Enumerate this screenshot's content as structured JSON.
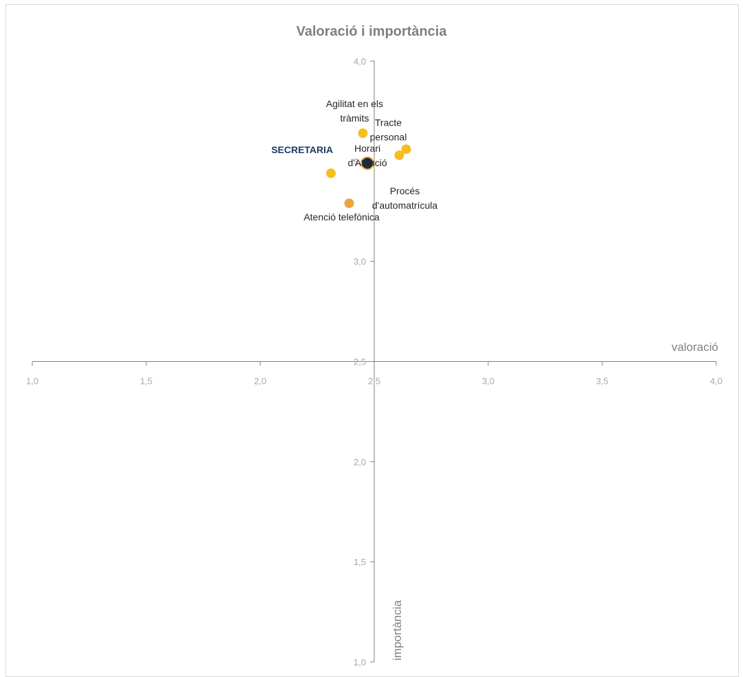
{
  "chart_data": {
    "type": "scatter",
    "title": "Valoració i importància",
    "xlabel": "valoració",
    "ylabel": "importància",
    "xlim": [
      1.0,
      4.0
    ],
    "ylim": [
      1.0,
      4.0
    ],
    "x_ticks": [
      "1,0",
      "1,5",
      "2,0",
      "2,5",
      "3,0",
      "3,5",
      "4,0"
    ],
    "y_ticks": [
      "1,0",
      "1,5",
      "2,0",
      "2,5",
      "3,0",
      "3,5",
      "4,0"
    ],
    "grid": false,
    "axis_crossing": [
      2.5,
      2.5
    ],
    "points": [
      {
        "label": "Agilitat en els tràmits",
        "x": 2.45,
        "y": 3.64,
        "color": "#f5bd1f"
      },
      {
        "label": "Tracte personal",
        "x": 2.64,
        "y": 3.56,
        "color": "#f5bd1f"
      },
      {
        "label": "Horari d'Atenció",
        "x": 2.47,
        "y": 3.49,
        "color": "#f5bd1f"
      },
      {
        "label": "Procés d'automatrícula",
        "x": 2.61,
        "y": 3.53,
        "color": "#f5bd1f"
      },
      {
        "label": "",
        "x": 2.31,
        "y": 3.44,
        "color": "#f5bd1f"
      },
      {
        "label": "Atenció telefònica",
        "x": 2.39,
        "y": 3.29,
        "color": "#f0a33c"
      }
    ],
    "highlight": {
      "label": "SECRETARIA",
      "x": 2.47,
      "y": 3.49,
      "color": "#1b2a4a",
      "edge": "#f5bd1f"
    }
  },
  "colors": {
    "axis": "#7f7f7f",
    "tick_text": "#a6a6a6",
    "title": "#7f7f7f",
    "highlight_text": "#1f3864"
  }
}
